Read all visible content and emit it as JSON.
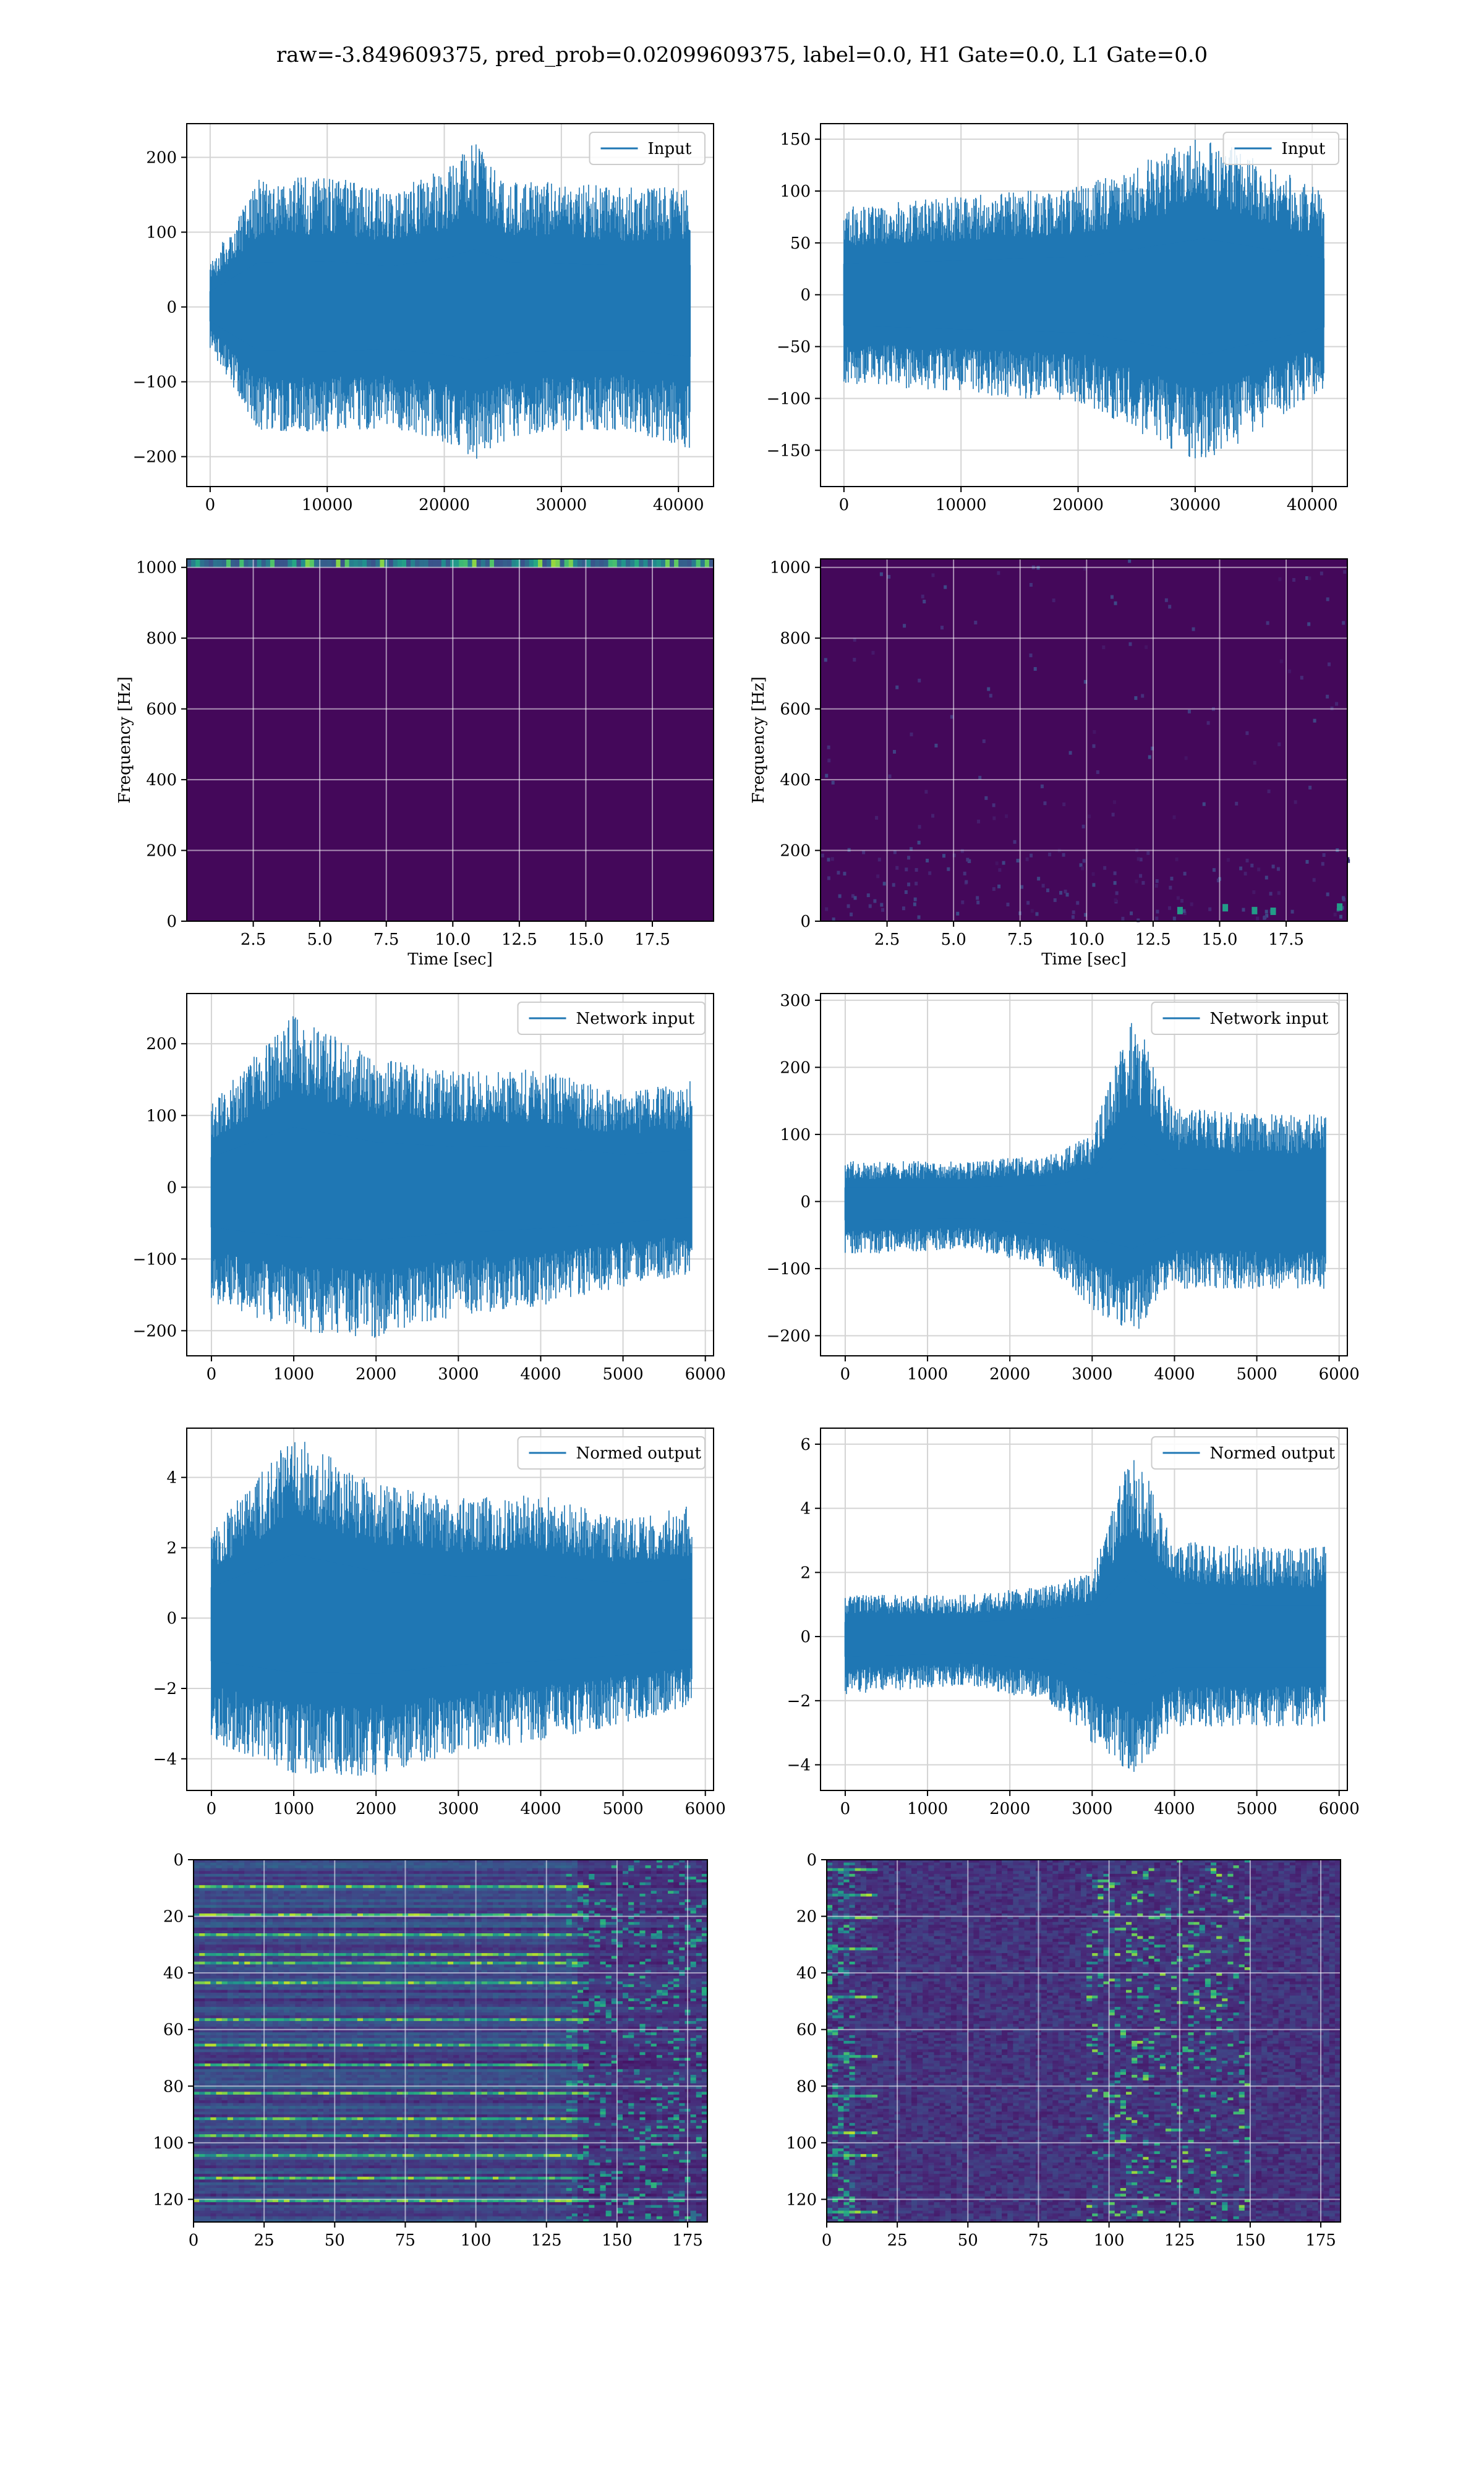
{
  "figure": {
    "suptitle": "raw=-3.849609375, pred_prob=0.02099609375, label=0.0, H1 Gate=0.0, L1 Gate=0.0"
  },
  "chart_data": [
    {
      "id": "r1c1",
      "type": "line",
      "legend": "Input",
      "legend_loc": "upper right",
      "grid": true,
      "xlim": [
        -2000,
        43000
      ],
      "ylim": [
        -240,
        245
      ],
      "xticks": [
        0,
        10000,
        20000,
        30000,
        40000
      ],
      "yticks": [
        -200,
        -100,
        0,
        100,
        200
      ],
      "xlabel": "",
      "ylabel": "",
      "series": [
        {
          "name": "Input",
          "n": 40960,
          "envelope": [
            [
              0,
              60,
              -55
            ],
            [
              4096,
              170,
              -165
            ],
            [
              10240,
              175,
              -170
            ],
            [
              15360,
              155,
              -160
            ],
            [
              20480,
              190,
              -185
            ],
            [
              22528,
              220,
              -205
            ],
            [
              25600,
              170,
              -175
            ],
            [
              30720,
              165,
              -165
            ],
            [
              35840,
              160,
              -165
            ],
            [
              40960,
              160,
              -190
            ]
          ]
        }
      ]
    },
    {
      "id": "r1c2",
      "type": "line",
      "legend": "Input",
      "legend_loc": "upper right",
      "grid": true,
      "xlim": [
        -2000,
        43000
      ],
      "ylim": [
        -185,
        165
      ],
      "xticks": [
        0,
        10000,
        20000,
        30000,
        40000
      ],
      "yticks": [
        -150,
        -100,
        -50,
        0,
        50,
        100,
        150
      ],
      "xlabel": "",
      "ylabel": "",
      "series": [
        {
          "name": "Input",
          "n": 40960,
          "envelope": [
            [
              0,
              85,
              -85
            ],
            [
              10240,
              95,
              -95
            ],
            [
              20480,
              105,
              -105
            ],
            [
              30720,
              155,
              -165
            ],
            [
              40960,
              100,
              -90
            ]
          ]
        }
      ]
    },
    {
      "id": "r2c1",
      "type": "heatmap",
      "subtype": "spectrogram",
      "grid": true,
      "xlim": [
        0,
        19.8
      ],
      "ylim": [
        0,
        1024
      ],
      "xticks": [
        2.5,
        5.0,
        7.5,
        10.0,
        12.5,
        15.0,
        17.5
      ],
      "yticks": [
        0,
        200,
        400,
        600,
        800,
        1000
      ],
      "xlabel": "Time [sec]",
      "ylabel": "Frequency [Hz]",
      "note": "uniform dark purple with a bright band at the top edge (~1000-1024 Hz)"
    },
    {
      "id": "r2c2",
      "type": "heatmap",
      "subtype": "spectrogram",
      "grid": true,
      "xlim": [
        0,
        19.8
      ],
      "ylim": [
        0,
        1024
      ],
      "xticks": [
        2.5,
        5.0,
        7.5,
        10.0,
        12.5,
        15.0,
        17.5
      ],
      "yticks": [
        0,
        200,
        400,
        600,
        800,
        1000
      ],
      "xlabel": "Time [sec]",
      "ylabel": "Frequency [Hz]",
      "note": "uniform dark purple with faint low-frequency spots"
    },
    {
      "id": "r3c1",
      "type": "line",
      "legend": "Network input",
      "legend_loc": "upper right",
      "grid": true,
      "xlim": [
        -300,
        6100
      ],
      "ylim": [
        -235,
        270
      ],
      "xticks": [
        0,
        1000,
        2000,
        3000,
        4000,
        5000,
        6000
      ],
      "yticks": [
        -200,
        -100,
        0,
        100,
        200
      ],
      "xlabel": "",
      "ylabel": "",
      "series": [
        {
          "name": "Network input",
          "n": 5840,
          "envelope": [
            [
              0,
              120,
              -160
            ],
            [
              1000,
              240,
              -200
            ],
            [
              2000,
              180,
              -210
            ],
            [
              3000,
              160,
              -180
            ],
            [
              4000,
              165,
              -165
            ],
            [
              5000,
              130,
              -140
            ],
            [
              5840,
              150,
              -120
            ]
          ]
        }
      ]
    },
    {
      "id": "r3c2",
      "type": "line",
      "legend": "Network input",
      "legend_loc": "upper right",
      "grid": true,
      "xlim": [
        -300,
        6100
      ],
      "ylim": [
        -230,
        310
      ],
      "xticks": [
        0,
        1000,
        2000,
        3000,
        4000,
        5000,
        6000
      ],
      "yticks": [
        -200,
        -100,
        0,
        100,
        200,
        300
      ],
      "xlabel": "",
      "ylabel": "",
      "series": [
        {
          "name": "Network input",
          "n": 5840,
          "envelope": [
            [
              0,
              60,
              -80
            ],
            [
              1500,
              60,
              -70
            ],
            [
              2500,
              70,
              -100
            ],
            [
              3000,
              100,
              -160
            ],
            [
              3500,
              280,
              -200
            ],
            [
              4000,
              140,
              -130
            ],
            [
              5000,
              130,
              -130
            ],
            [
              5840,
              130,
              -130
            ]
          ]
        }
      ]
    },
    {
      "id": "r4c1",
      "type": "line",
      "legend": "Normed output",
      "legend_loc": "upper right",
      "grid": true,
      "xlim": [
        -300,
        6100
      ],
      "ylim": [
        -4.9,
        5.4
      ],
      "xticks": [
        0,
        1000,
        2000,
        3000,
        4000,
        5000,
        6000
      ],
      "yticks": [
        -4,
        -2,
        0,
        2,
        4
      ],
      "xlabel": "",
      "ylabel": "",
      "series": [
        {
          "name": "Normed output",
          "n": 5840,
          "envelope": [
            [
              0,
              2.5,
              -3.5
            ],
            [
              1000,
              5.2,
              -4.4
            ],
            [
              2000,
              3.8,
              -4.5
            ],
            [
              3000,
              3.4,
              -3.8
            ],
            [
              4000,
              3.5,
              -3.5
            ],
            [
              5000,
              2.8,
              -3.0
            ],
            [
              5840,
              3.2,
              -2.5
            ]
          ]
        }
      ]
    },
    {
      "id": "r4c2",
      "type": "line",
      "legend": "Normed output",
      "legend_loc": "upper right",
      "grid": true,
      "xlim": [
        -300,
        6100
      ],
      "ylim": [
        -4.8,
        6.5
      ],
      "xticks": [
        0,
        1000,
        2000,
        3000,
        4000,
        5000,
        6000
      ],
      "yticks": [
        -4,
        -2,
        0,
        2,
        4,
        6
      ],
      "xlabel": "",
      "ylabel": "",
      "series": [
        {
          "name": "Normed output",
          "n": 5840,
          "envelope": [
            [
              0,
              1.3,
              -1.8
            ],
            [
              1500,
              1.3,
              -1.5
            ],
            [
              2500,
              1.6,
              -2.1
            ],
            [
              3000,
              2.0,
              -3.3
            ],
            [
              3500,
              6.0,
              -4.3
            ],
            [
              4000,
              3.0,
              -2.8
            ],
            [
              5000,
              2.8,
              -2.8
            ],
            [
              5840,
              2.8,
              -2.8
            ]
          ]
        }
      ]
    },
    {
      "id": "r5c1",
      "type": "heatmap",
      "grid": true,
      "xlim": [
        0,
        182
      ],
      "ylim": [
        128,
        0
      ],
      "xticks": [
        0,
        25,
        50,
        75,
        100,
        125,
        150,
        175
      ],
      "yticks": [
        0,
        20,
        40,
        60,
        80,
        100,
        120
      ],
      "xlabel": "",
      "ylabel": "",
      "rows": 128,
      "cols": 182,
      "bright_rows": [
        9,
        19,
        26,
        33,
        36,
        43,
        56,
        65,
        72,
        82,
        91,
        97,
        104,
        112,
        120
      ]
    },
    {
      "id": "r5c2",
      "type": "heatmap",
      "grid": true,
      "xlim": [
        0,
        182
      ],
      "ylim": [
        128,
        0
      ],
      "xticks": [
        0,
        25,
        50,
        75,
        100,
        125,
        150,
        175
      ],
      "yticks": [
        0,
        20,
        40,
        60,
        80,
        100,
        120
      ],
      "xlabel": "",
      "ylabel": "",
      "rows": 128,
      "cols": 182,
      "bright_rows": [
        3,
        12,
        20,
        31,
        48,
        69,
        83,
        96,
        104,
        124
      ]
    }
  ]
}
